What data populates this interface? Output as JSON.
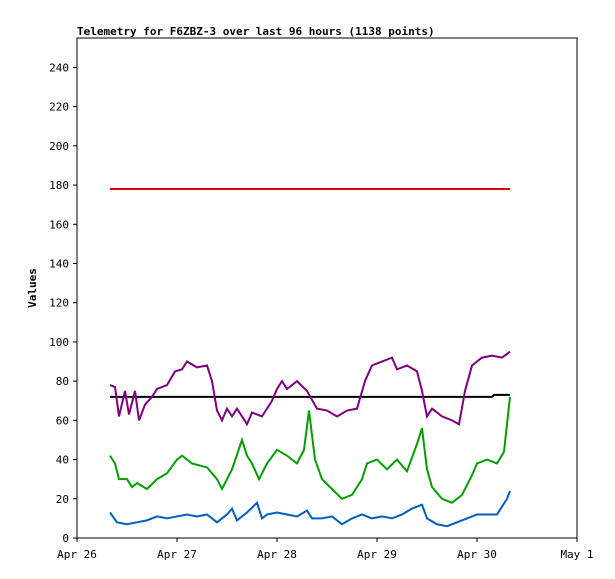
{
  "chart_data": {
    "type": "line",
    "title": "Telemetry for F6ZBZ-3 over last 96 hours (1138 points)",
    "ylabel": "Values",
    "xlim": [
      0,
      5
    ],
    "xticks": [
      {
        "value": 0,
        "label": "Apr 26"
      },
      {
        "value": 1,
        "label": "Apr 27"
      },
      {
        "value": 2,
        "label": "Apr 28"
      },
      {
        "value": 3,
        "label": "Apr 29"
      },
      {
        "value": 4,
        "label": "Apr 30"
      },
      {
        "value": 5,
        "label": "May 1"
      }
    ],
    "ylim": [
      0,
      255
    ],
    "yticks": [
      0,
      20,
      40,
      60,
      80,
      100,
      120,
      140,
      160,
      180,
      200,
      220,
      240
    ],
    "grid": false,
    "series": [
      {
        "color": "#e00000",
        "x": [
          0.33,
          4.33
        ],
        "values": [
          178,
          178
        ]
      },
      {
        "color": "#000000",
        "x": [
          0.33,
          4.15,
          4.17,
          4.33
        ],
        "values": [
          72,
          72,
          73,
          73
        ]
      },
      {
        "color": "#800080",
        "x": [
          0.33,
          0.38,
          0.42,
          0.48,
          0.52,
          0.58,
          0.62,
          0.68,
          0.75,
          0.8,
          0.9,
          0.98,
          1.05,
          1.1,
          1.2,
          1.3,
          1.35,
          1.4,
          1.45,
          1.5,
          1.55,
          1.6,
          1.7,
          1.75,
          1.85,
          1.95,
          2.0,
          2.05,
          2.1,
          2.2,
          2.3,
          2.4,
          2.5,
          2.6,
          2.7,
          2.8,
          2.88,
          2.95,
          3.05,
          3.15,
          3.2,
          3.3,
          3.4,
          3.45,
          3.5,
          3.55,
          3.65,
          3.75,
          3.82,
          3.88,
          3.95,
          4.05,
          4.15,
          4.25,
          4.33
        ],
        "values": [
          78,
          77,
          62,
          75,
          63,
          75,
          60,
          68,
          72,
          76,
          78,
          85,
          86,
          90,
          87,
          88,
          80,
          65,
          60,
          66,
          62,
          66,
          58,
          64,
          62,
          70,
          76,
          80,
          76,
          80,
          75,
          66,
          65,
          62,
          65,
          66,
          80,
          88,
          90,
          92,
          86,
          88,
          85,
          75,
          62,
          66,
          62,
          60,
          58,
          75,
          88,
          92,
          93,
          92,
          95
        ]
      },
      {
        "color": "#00a000",
        "x": [
          0.33,
          0.38,
          0.42,
          0.5,
          0.55,
          0.6,
          0.7,
          0.8,
          0.9,
          1.0,
          1.05,
          1.15,
          1.3,
          1.4,
          1.45,
          1.55,
          1.65,
          1.7,
          1.75,
          1.82,
          1.9,
          2.0,
          2.1,
          2.2,
          2.27,
          2.32,
          2.38,
          2.45,
          2.55,
          2.65,
          2.75,
          2.85,
          2.9,
          3.0,
          3.1,
          3.2,
          3.3,
          3.4,
          3.45,
          3.5,
          3.55,
          3.65,
          3.75,
          3.85,
          3.95,
          4.0,
          4.1,
          4.2,
          4.27,
          4.33
        ],
        "values": [
          42,
          38,
          30,
          30,
          26,
          28,
          25,
          30,
          33,
          40,
          42,
          38,
          36,
          30,
          25,
          35,
          50,
          42,
          38,
          30,
          38,
          45,
          42,
          38,
          45,
          65,
          40,
          30,
          25,
          20,
          22,
          30,
          38,
          40,
          35,
          40,
          34,
          48,
          56,
          35,
          26,
          20,
          18,
          22,
          32,
          38,
          40,
          38,
          44,
          72
        ]
      },
      {
        "color": "#0060c0",
        "x": [
          0.33,
          0.4,
          0.5,
          0.6,
          0.7,
          0.8,
          0.9,
          1.0,
          1.1,
          1.2,
          1.3,
          1.4,
          1.5,
          1.55,
          1.6,
          1.7,
          1.8,
          1.85,
          1.9,
          2.0,
          2.1,
          2.2,
          2.3,
          2.35,
          2.45,
          2.55,
          2.65,
          2.75,
          2.85,
          2.95,
          3.05,
          3.15,
          3.25,
          3.35,
          3.45,
          3.5,
          3.6,
          3.7,
          3.8,
          3.9,
          4.0,
          4.1,
          4.2,
          4.3,
          4.33
        ],
        "values": [
          13,
          8,
          7,
          8,
          9,
          11,
          10,
          11,
          12,
          11,
          12,
          8,
          12,
          15,
          9,
          13,
          18,
          10,
          12,
          13,
          12,
          11,
          14,
          10,
          10,
          11,
          7,
          10,
          12,
          10,
          11,
          10,
          12,
          15,
          17,
          10,
          7,
          6,
          8,
          10,
          12,
          12,
          12,
          20,
          24
        ]
      }
    ]
  }
}
